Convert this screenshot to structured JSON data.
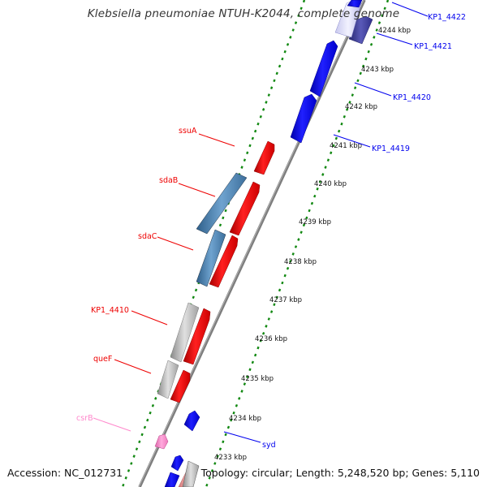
{
  "title": "Klebsiella pneumoniae NTUH-K2044, complete genome",
  "footer": {
    "accession": "Accession: NC_012731",
    "summary": "Topology: circular; Length: 5,248,520 bp; Genes: 5,110"
  },
  "colors": {
    "forward_cds": "#ff0000",
    "reverse_cds": "#0000ff",
    "steelblue_cds": "#4682b4",
    "grey_cds": "#c0c0c0",
    "slate_cds": "#3b3b9a",
    "rna": "#ff88cc",
    "backbone": "#808080",
    "ticks": "#118811"
  },
  "kbp_labels": [
    "4244 kbp",
    "4243 kbp",
    "4242 kbp",
    "4241 kbp",
    "4240 kbp",
    "4239 kbp",
    "4238 kbp",
    "4237 kbp",
    "4236 kbp",
    "4235 kbp",
    "4234 kbp",
    "4233 kbp"
  ],
  "gene_labels_left": [
    "ssuA",
    "sdaB",
    "sdaC",
    "KP1_4410",
    "queF",
    "csrB"
  ],
  "gene_labels_right": [
    "KP1_4422",
    "KP1_4421",
    "KP1_4420",
    "KP1_4419",
    "syd"
  ]
}
